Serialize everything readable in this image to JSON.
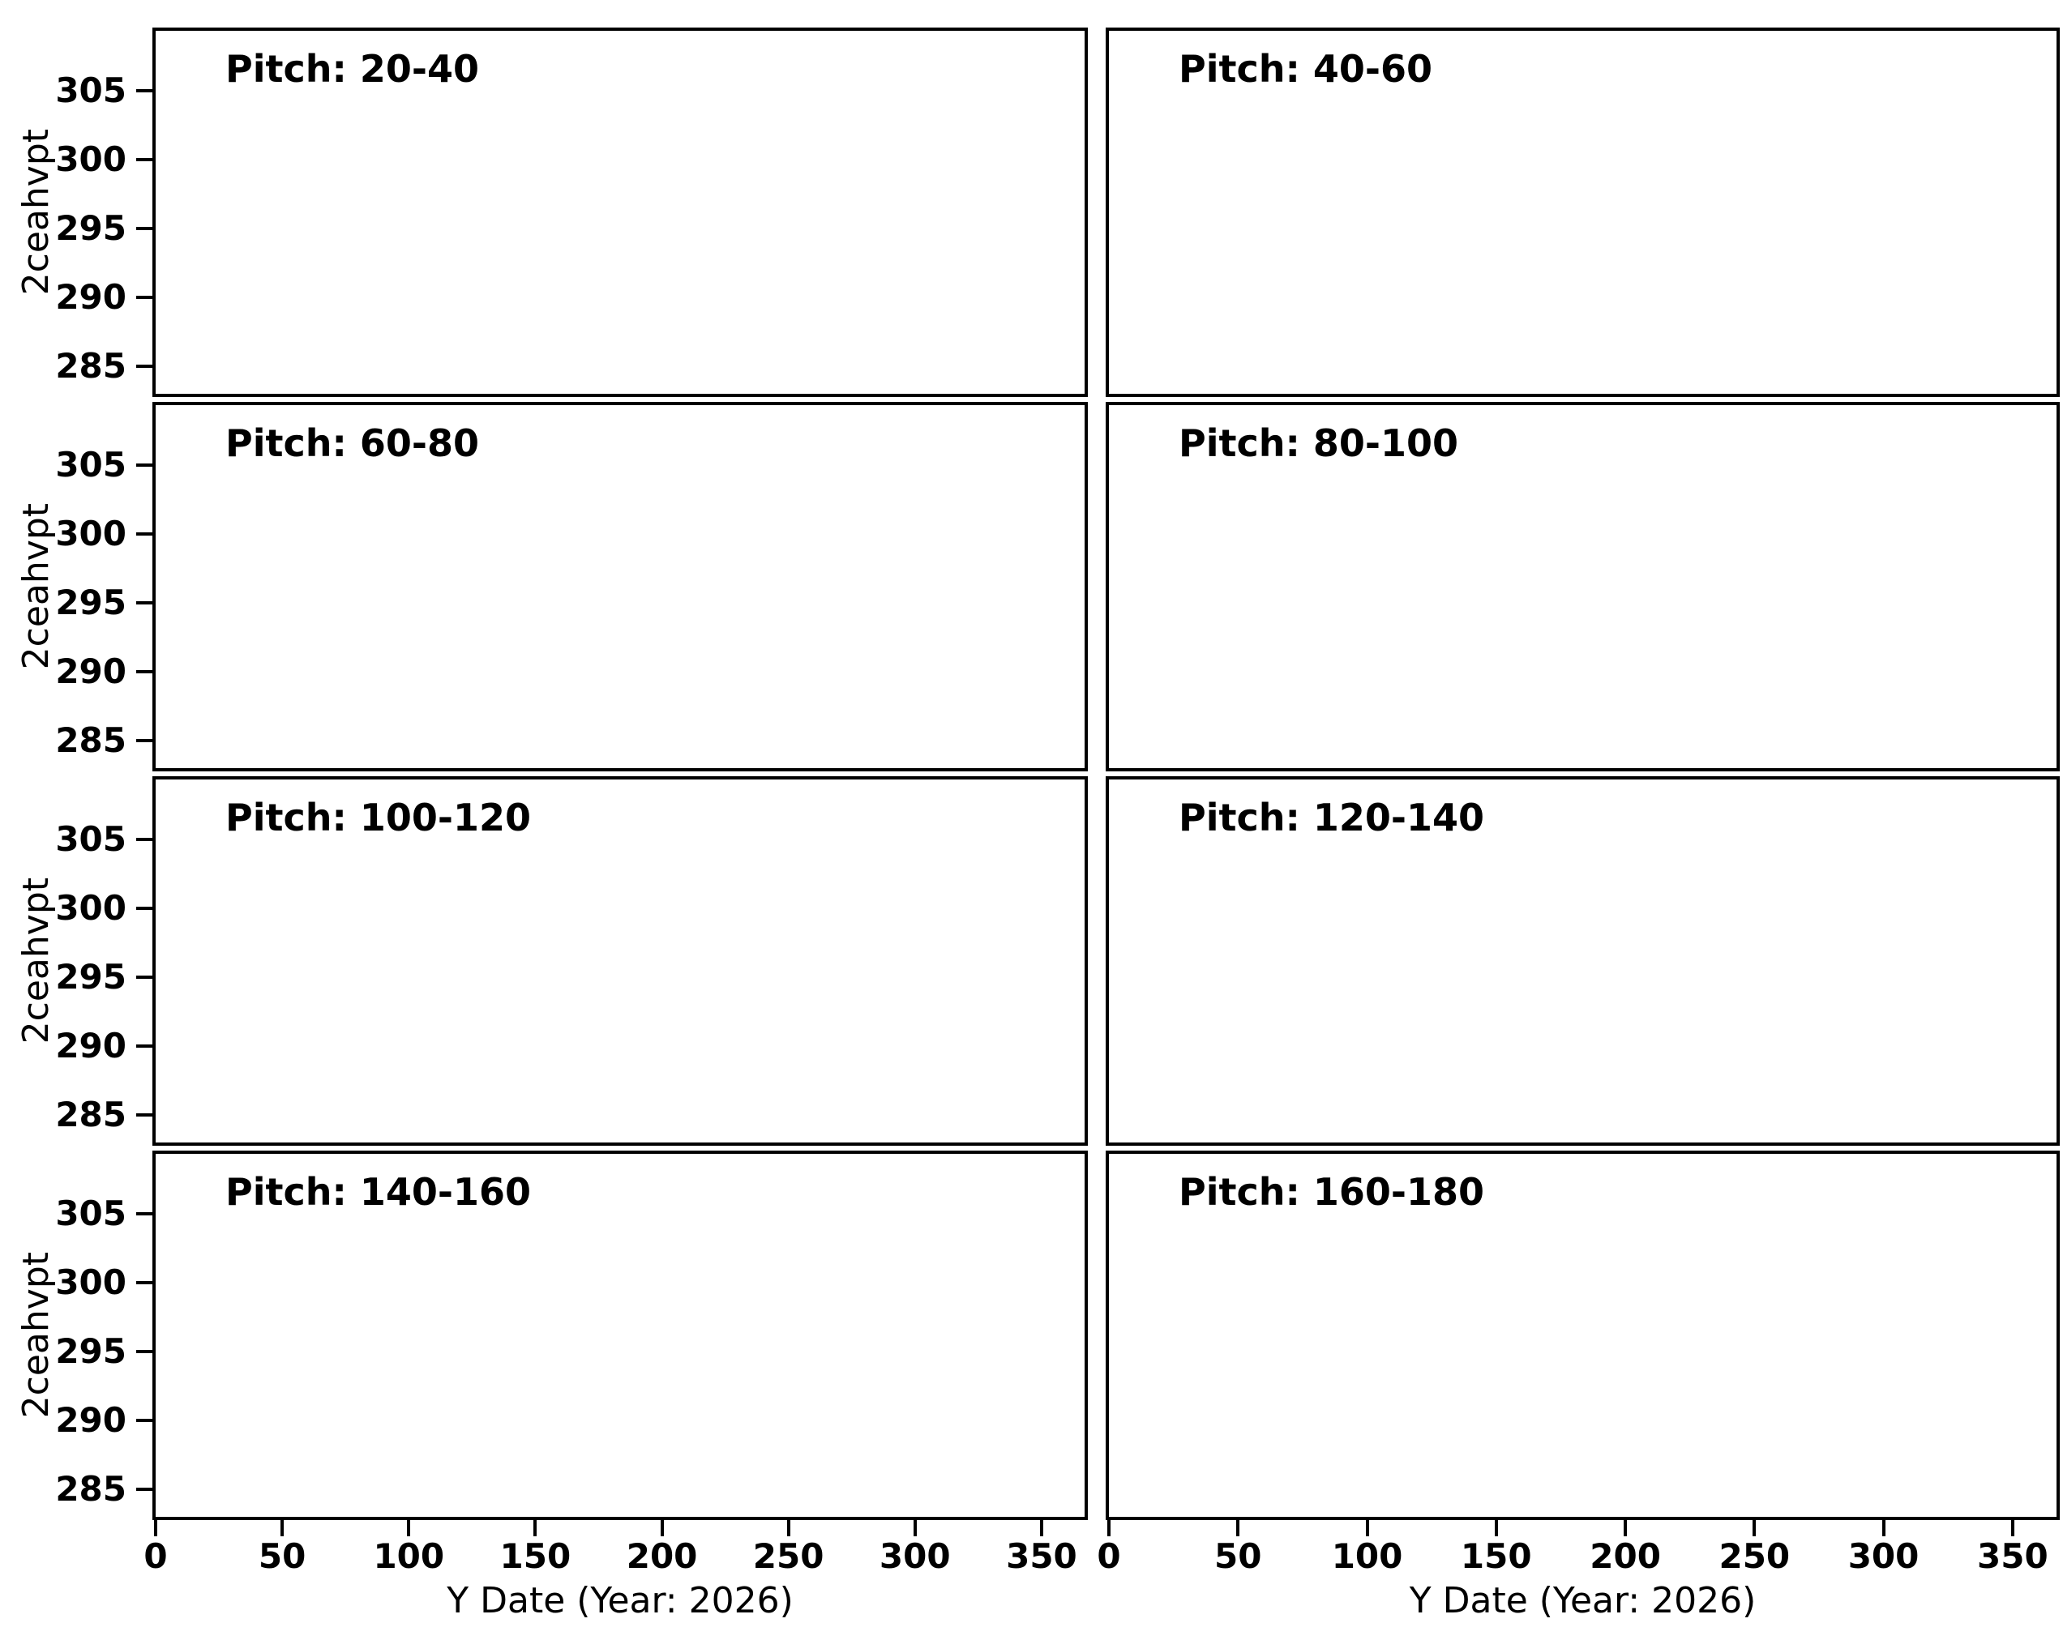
{
  "figure": {
    "background_color": "#ffffff",
    "foreground_color": "#000000",
    "grid_layout": "4 rows x 2 columns"
  },
  "y_axis": {
    "label": "2ceahvpt",
    "ticks": [
      "305",
      "300",
      "295",
      "290",
      "285"
    ]
  },
  "x_axis": {
    "label": "Y Date (Year: 2026)",
    "ticks": [
      "0",
      "50",
      "100",
      "150",
      "200",
      "250",
      "300",
      "350"
    ]
  },
  "panels": [
    {
      "title": "Pitch: 20-40"
    },
    {
      "title": "Pitch: 40-60"
    },
    {
      "title": "Pitch: 60-80"
    },
    {
      "title": "Pitch: 80-100"
    },
    {
      "title": "Pitch: 100-120"
    },
    {
      "title": "Pitch: 120-140"
    },
    {
      "title": "Pitch: 140-160"
    },
    {
      "title": "Pitch: 160-180"
    }
  ],
  "chart_data": {
    "type": "scatter",
    "layout": "4x2 grid of subplots with shared axes; y tick labels only on left column, x tick labels only on bottom row",
    "title": "",
    "xlabel": "Y Date (Year: 2026)",
    "ylabel": "2ceahvpt",
    "xlim": [
      0,
      367
    ],
    "ylim": [
      283.5,
      307.5
    ],
    "xticks": [
      0,
      50,
      100,
      150,
      200,
      250,
      300,
      350
    ],
    "yticks": [
      285,
      290,
      295,
      300,
      305
    ],
    "grid": false,
    "legend": "none",
    "subplots": [
      {
        "title": "Pitch: 20-40",
        "series": [],
        "points": []
      },
      {
        "title": "Pitch: 40-60",
        "series": [],
        "points": []
      },
      {
        "title": "Pitch: 60-80",
        "series": [],
        "points": []
      },
      {
        "title": "Pitch: 80-100",
        "series": [],
        "points": []
      },
      {
        "title": "Pitch: 100-120",
        "series": [],
        "points": []
      },
      {
        "title": "Pitch: 120-140",
        "series": [],
        "points": []
      },
      {
        "title": "Pitch: 140-160",
        "series": [],
        "points": []
      },
      {
        "title": "Pitch: 160-180",
        "series": [],
        "points": []
      }
    ],
    "note": "All eight subplots are empty (no data points plotted)."
  }
}
